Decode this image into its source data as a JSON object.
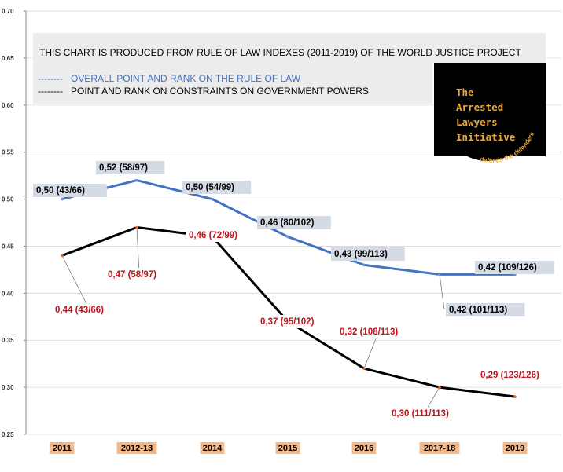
{
  "colors": {
    "overall": "#4472c4",
    "constraints": "#000000",
    "constraints_label": "#c0141c",
    "overall_label": "#000000",
    "label_bg": "#d4dbe5",
    "header_bg": "#ececec",
    "cat_bg": "#f3b98a",
    "logo_bg": "#000000",
    "logo_text": "#e9a93a"
  },
  "header": {
    "title": "THIS CHART IS PRODUCED FROM RULE OF LAW INDEXES (2011-2019) OF THE WORLD JUSTICE PROJECT",
    "legend_overall_dash": "--------",
    "legend_overall": "OVERALL POINT AND RANK ON THE RULE OF LAW",
    "legend_constraints_dash": "--------",
    "legend_constraints": "POINT AND RANK ON CONSTRAINTS ON GOVERNMENT POWERS"
  },
  "logo": {
    "lines": [
      "The",
      "Arrested",
      "Lawyers",
      "Initiative"
    ],
    "curved": "defends the defenders"
  },
  "chart_data": {
    "type": "line",
    "title": "THIS CHART IS PRODUCED FROM RULE OF LAW INDEXES (2011-2019) OF THE WORLD JUSTICE PROJECT",
    "categories": [
      "2011",
      "2012-13",
      "2014",
      "2015",
      "2016",
      "2017-18",
      "2019"
    ],
    "ylim": [
      0.25,
      0.7
    ],
    "yticks": [
      "0,25",
      "0,30",
      "0,35",
      "0,40",
      "0,45",
      "0,50",
      "0,55",
      "0,60",
      "0,65",
      "0,70"
    ],
    "series": [
      {
        "name": "OVERALL POINT AND RANK ON THE RULE OF LAW",
        "values": [
          0.5,
          0.52,
          0.5,
          0.46,
          0.43,
          0.42,
          0.42
        ],
        "labels": [
          "0,50  (43/66)",
          "0,52 (58/97)",
          "0,50 (54/99)",
          "0,46 (80/102)",
          "0,43 (99/113)",
          "0,42 (101/113)",
          "0,42 (109/126)"
        ]
      },
      {
        "name": "POINT AND RANK ON CONSTRAINTS ON GOVERNMENT POWERS",
        "values": [
          0.44,
          0.47,
          0.46,
          0.37,
          0.32,
          0.3,
          0.29
        ],
        "labels": [
          "0,44 (43/66)",
          "0,47 (58/97)",
          "0,46 (72/99)",
          "0,37 (95/102)",
          "0,32 (108/113)",
          "0,30 (111/113)",
          "0,29 (123/126)"
        ]
      }
    ]
  }
}
